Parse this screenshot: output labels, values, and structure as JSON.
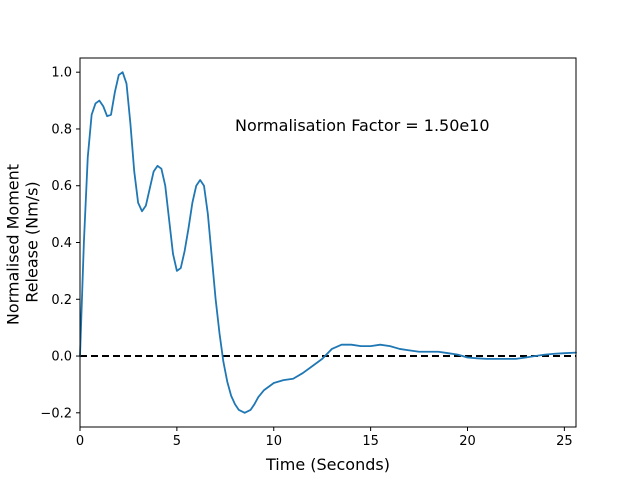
{
  "chart_data": {
    "type": "line",
    "title": "",
    "xlabel": "Time (Seconds)",
    "ylabel": [
      "Normalised Moment",
      "Release (Nm/s)"
    ],
    "xlim": [
      0,
      25.6
    ],
    "ylim": [
      -0.25,
      1.05
    ],
    "x_ticks": [
      0,
      5,
      10,
      15,
      20,
      25
    ],
    "x_tick_labels": [
      "0",
      "5",
      "10",
      "15",
      "20",
      "25"
    ],
    "y_ticks": [
      -0.2,
      0.0,
      0.2,
      0.4,
      0.6,
      0.8,
      1.0
    ],
    "y_tick_labels": [
      "−0.2",
      "0.0",
      "0.2",
      "0.4",
      "0.6",
      "0.8",
      "1.0"
    ],
    "grid": false,
    "annotation": "Normalisation Factor = 1.50e10",
    "reference_line": {
      "y": 0,
      "style": "dashed",
      "color": "#000000"
    },
    "series": [
      {
        "color": "#1f77b4",
        "x": [
          0,
          0.2,
          0.4,
          0.6,
          0.8,
          1.0,
          1.2,
          1.4,
          1.6,
          1.8,
          2.0,
          2.2,
          2.4,
          2.6,
          2.8,
          3.0,
          3.2,
          3.4,
          3.6,
          3.8,
          4.0,
          4.2,
          4.4,
          4.6,
          4.8,
          5.0,
          5.2,
          5.4,
          5.6,
          5.8,
          6.0,
          6.2,
          6.4,
          6.6,
          6.8,
          7.0,
          7.2,
          7.4,
          7.6,
          7.8,
          8.0,
          8.2,
          8.5,
          8.8,
          9.0,
          9.2,
          9.5,
          9.8,
          10.0,
          10.5,
          11.0,
          11.5,
          12.0,
          12.5,
          13.0,
          13.5,
          14.0,
          14.5,
          15.0,
          15.5,
          16.0,
          16.5,
          17.0,
          17.5,
          18.0,
          18.5,
          19.0,
          19.5,
          20.0,
          20.5,
          21.0,
          21.5,
          22.0,
          22.5,
          23.0,
          23.5,
          24.0,
          24.5,
          25.0,
          25.6
        ],
        "y": [
          0.0,
          0.4,
          0.7,
          0.85,
          0.89,
          0.9,
          0.88,
          0.845,
          0.85,
          0.93,
          0.99,
          1.0,
          0.96,
          0.82,
          0.65,
          0.54,
          0.51,
          0.53,
          0.59,
          0.65,
          0.67,
          0.66,
          0.6,
          0.48,
          0.36,
          0.3,
          0.31,
          0.37,
          0.45,
          0.54,
          0.6,
          0.62,
          0.6,
          0.5,
          0.35,
          0.2,
          0.08,
          -0.02,
          -0.09,
          -0.14,
          -0.17,
          -0.19,
          -0.2,
          -0.19,
          -0.17,
          -0.145,
          -0.12,
          -0.105,
          -0.095,
          -0.085,
          -0.08,
          -0.06,
          -0.035,
          -0.01,
          0.025,
          0.04,
          0.04,
          0.035,
          0.035,
          0.04,
          0.035,
          0.025,
          0.02,
          0.015,
          0.015,
          0.015,
          0.01,
          0.005,
          -0.005,
          -0.008,
          -0.01,
          -0.01,
          -0.01,
          -0.01,
          -0.005,
          0.0,
          0.005,
          0.008,
          0.01,
          0.012
        ]
      }
    ]
  }
}
